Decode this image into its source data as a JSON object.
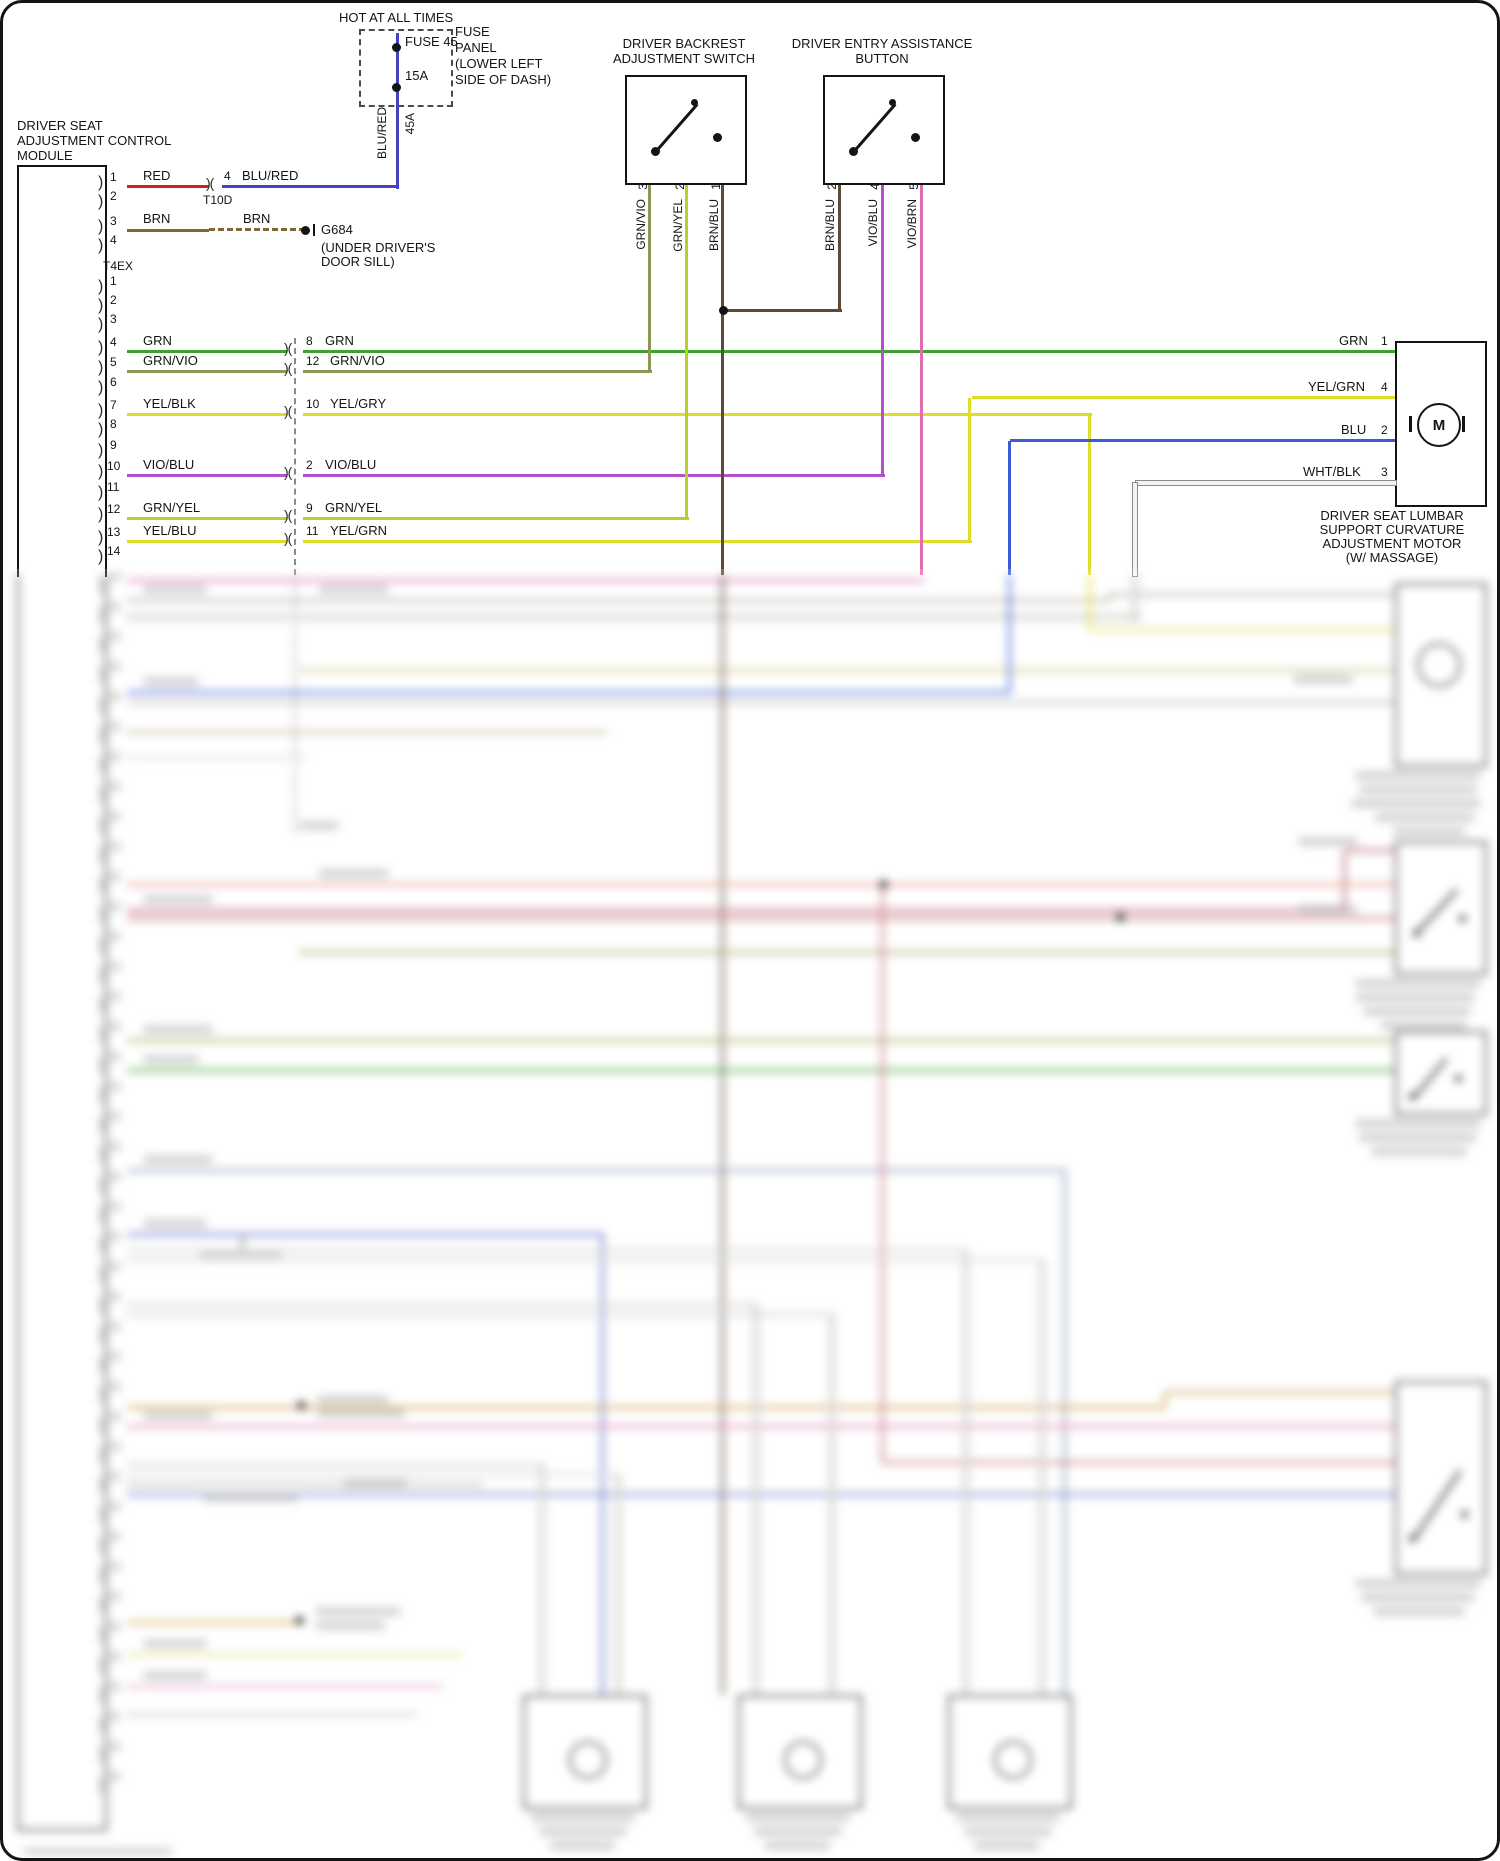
{
  "power": {
    "hot_label": "HOT AT ALL TIMES",
    "fuse_label": "FUSE 45",
    "amp_label": "15A",
    "panel_lines": [
      "FUSE",
      "PANEL",
      "(LOWER LEFT",
      "SIDE OF DASH)"
    ],
    "wire_label": "BLU/RED",
    "circuit_label": "45A"
  },
  "module": {
    "title_lines": [
      "DRIVER SEAT",
      "ADJUSTMENT CONTROL",
      "MODULE"
    ],
    "connector_a": "T10D",
    "connector_b": "T4EX",
    "ground": {
      "name": "G684",
      "note_lines": [
        "(UNDER DRIVER'S",
        "DOOR SILL)"
      ]
    }
  },
  "rows": [
    {
      "pin": "1",
      "wire": "RED",
      "conn_pin": "4",
      "conn_wire": "BLU/RED"
    },
    {
      "pin": "2"
    },
    {
      "pin": "3",
      "wire": "BRN",
      "splice_wire": "BRN"
    },
    {
      "pin": "4"
    },
    {
      "pin": "1"
    },
    {
      "pin": "2"
    },
    {
      "pin": "3"
    },
    {
      "pin": "4",
      "wire": "GRN",
      "conn_pin": "8",
      "conn_wire": "GRN"
    },
    {
      "pin": "5",
      "wire": "GRN/VIO",
      "conn_pin": "12",
      "conn_wire": "GRN/VIO"
    },
    {
      "pin": "6"
    },
    {
      "pin": "7",
      "wire": "YEL/BLK",
      "conn_pin": "10",
      "conn_wire": "YEL/GRY"
    },
    {
      "pin": "8"
    },
    {
      "pin": "9"
    },
    {
      "pin": "10",
      "wire": "VIO/BLU",
      "conn_pin": "2",
      "conn_wire": "VIO/BLU"
    },
    {
      "pin": "11"
    },
    {
      "pin": "12",
      "wire": "GRN/YEL",
      "conn_pin": "9",
      "conn_wire": "GRN/YEL"
    },
    {
      "pin": "13",
      "wire": "YEL/BLU",
      "conn_pin": "11",
      "conn_wire": "YEL/GRN"
    },
    {
      "pin": "14"
    }
  ],
  "backrest_switch": {
    "title_lines": [
      "DRIVER BACKREST",
      "ADJUSTMENT SWITCH"
    ],
    "pins": [
      {
        "num": "3",
        "wire": "GRN/VIO"
      },
      {
        "num": "2",
        "wire": "GRN/YEL"
      },
      {
        "num": "1",
        "wire": "BRN/BLU"
      }
    ]
  },
  "entry_button": {
    "title_lines": [
      "DRIVER ENTRY ASSISTANCE",
      "BUTTON"
    ],
    "pins": [
      {
        "num": "2",
        "wire": "BRN/BLU"
      },
      {
        "num": "4",
        "wire": "VIO/BLU"
      },
      {
        "num": "5",
        "wire": "VIO/BRN"
      }
    ]
  },
  "lumbar_motor": {
    "symbol": "M",
    "pins": [
      {
        "wire": "GRN",
        "num": "1"
      },
      {
        "wire": "YEL/GRN",
        "num": "4"
      },
      {
        "wire": "BLU",
        "num": "2"
      },
      {
        "wire": "WHT/BLK",
        "num": "3"
      }
    ],
    "label_lines": [
      "DRIVER SEAT LUMBAR",
      "SUPPORT CURVATURE",
      "ADJUSTMENT MOTOR",
      "(W/ MASSAGE)"
    ]
  },
  "colors": {
    "red": "#cc2222",
    "blu_red": "#4343c0",
    "brn": "#7d6a33",
    "grn": "#3aa32a",
    "grn_vio": "#8f9554",
    "yellow": "#dede2a",
    "vio_blu": "#b44fd0",
    "grn_yel": "#b9cf2e",
    "vio_brn": "#e06dae",
    "brn_blu": "#5d4a39",
    "blu": "#3b5bd6",
    "wht_blk": "#e8e8e4",
    "black": "#141414"
  }
}
